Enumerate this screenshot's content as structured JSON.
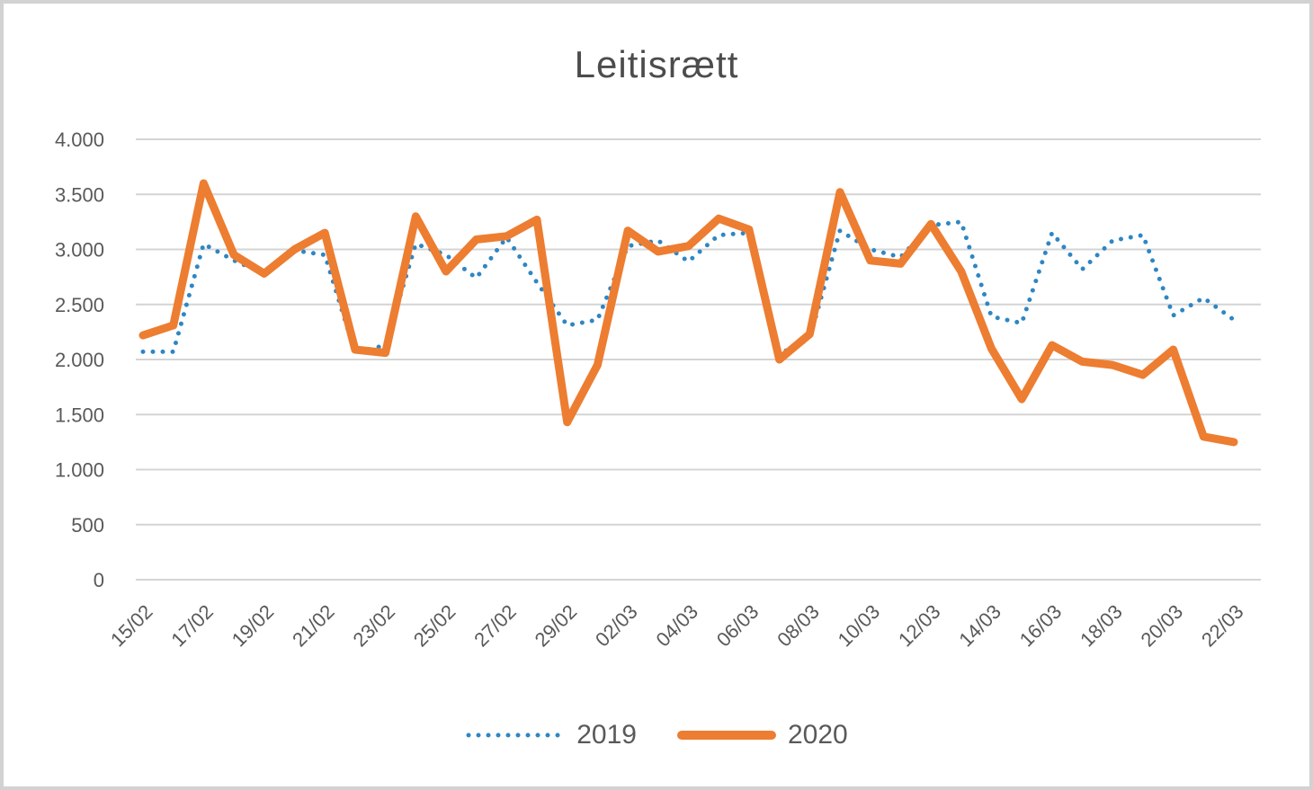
{
  "chart_data": {
    "type": "line",
    "title": "Leitisrætt",
    "xlabel": "",
    "ylabel": "",
    "grid": true,
    "legend_position": "bottom",
    "text_color": "#595959",
    "grid_color": "#D4D4D4",
    "ylim": [
      0,
      4000
    ],
    "x_tick_every": 2,
    "y_ticks": [
      {
        "value": 0,
        "label": "0"
      },
      {
        "value": 500,
        "label": "500"
      },
      {
        "value": 1000,
        "label": "1.000"
      },
      {
        "value": 1500,
        "label": "1.500"
      },
      {
        "value": 2000,
        "label": "2.000"
      },
      {
        "value": 2500,
        "label": "2.500"
      },
      {
        "value": 3000,
        "label": "3.000"
      },
      {
        "value": 3500,
        "label": "3.500"
      },
      {
        "value": 4000,
        "label": "4.000"
      }
    ],
    "categories": [
      "15/02",
      "16/02",
      "17/02",
      "18/02",
      "19/02",
      "20/02",
      "21/02",
      "22/02",
      "23/02",
      "24/02",
      "25/02",
      "26/02",
      "27/02",
      "28/02",
      "29/02",
      "01/03",
      "02/03",
      "03/03",
      "04/03",
      "05/03",
      "06/03",
      "07/03",
      "08/03",
      "09/03",
      "10/03",
      "11/03",
      "12/03",
      "13/03",
      "14/03",
      "15/03",
      "16/03",
      "17/03",
      "18/03",
      "19/03",
      "20/03",
      "21/03",
      "22/03"
    ],
    "series": [
      {
        "name": "2019",
        "style": "dotted",
        "color": "#2E86C4",
        "values": [
          2070,
          2070,
          3050,
          2900,
          2780,
          2990,
          2950,
          2060,
          2130,
          3050,
          2950,
          2740,
          3110,
          2700,
          2310,
          2360,
          3030,
          3080,
          2890,
          3130,
          3150,
          2050,
          2190,
          3170,
          3000,
          2930,
          3220,
          3250,
          2390,
          2330,
          3150,
          2820,
          3080,
          3130,
          2400,
          2560,
          2360
        ]
      },
      {
        "name": "2020",
        "style": "solid",
        "color": "#ED7D31",
        "values": [
          2220,
          2310,
          3600,
          2950,
          2780,
          3000,
          3150,
          2090,
          2060,
          3300,
          2800,
          3090,
          3120,
          3270,
          1430,
          1950,
          3170,
          2980,
          3030,
          3280,
          3180,
          2000,
          2230,
          3520,
          2900,
          2870,
          3230,
          2800,
          2100,
          1640,
          2130,
          1980,
          1950,
          1860,
          2090,
          1300,
          1250
        ]
      }
    ]
  }
}
